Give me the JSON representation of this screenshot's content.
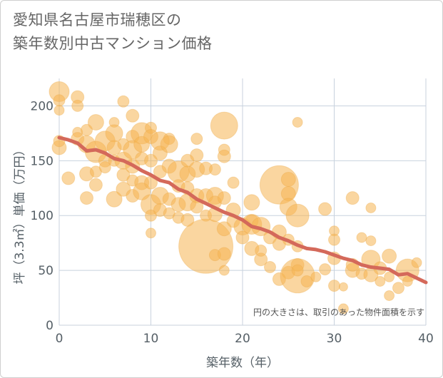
{
  "title_line1": "愛知県名古屋市瑞穂区の",
  "title_line2": "築年数別中古マンション価格",
  "chart_data": {
    "type": "scatter",
    "xlabel": "築年数（年）",
    "ylabel": "坪（3.3㎡）単価（万円）",
    "xlim": [
      0,
      40
    ],
    "ylim": [
      0,
      225
    ],
    "x_ticks": [
      "0",
      "10",
      "20",
      "30",
      "40"
    ],
    "y_ticks": [
      "0",
      "50",
      "100",
      "150",
      "200"
    ],
    "annotation": "円の大きさは、取引のあった物件面積を示す",
    "colors": {
      "bubble": "#f5b552",
      "trend": "#d4695a",
      "grid": "#c8d2de"
    },
    "trend": {
      "x": [
        0,
        1,
        2,
        3,
        4,
        5,
        6,
        7,
        8,
        9,
        10,
        11,
        12,
        13,
        14,
        15,
        16,
        17,
        18,
        19,
        20,
        21,
        22,
        23,
        24,
        25,
        26,
        27,
        28,
        29,
        30,
        31,
        32,
        33,
        34,
        35,
        36,
        37,
        38,
        39,
        40
      ],
      "y": [
        171,
        169,
        166,
        159,
        160,
        157,
        152,
        150,
        146,
        141,
        137,
        132,
        130,
        124,
        121,
        115,
        111,
        107,
        103,
        100,
        96,
        90,
        88,
        85,
        80,
        77,
        73,
        70,
        69,
        67,
        64,
        61,
        59,
        55,
        53,
        52,
        51,
        46,
        47,
        43,
        39
      ]
    },
    "points": [
      {
        "x": 0,
        "y": 213,
        "s": 14
      },
      {
        "x": 0,
        "y": 205,
        "s": 8
      },
      {
        "x": 0,
        "y": 196,
        "s": 7
      },
      {
        "x": 0,
        "y": 162,
        "s": 10
      },
      {
        "x": 0,
        "y": 168,
        "s": 8
      },
      {
        "x": 1,
        "y": 134,
        "s": 9
      },
      {
        "x": 2,
        "y": 208,
        "s": 9
      },
      {
        "x": 2,
        "y": 200,
        "s": 8
      },
      {
        "x": 2,
        "y": 176,
        "s": 7
      },
      {
        "x": 2,
        "y": 170,
        "s": 9
      },
      {
        "x": 3,
        "y": 178,
        "s": 8
      },
      {
        "x": 3,
        "y": 165,
        "s": 12
      },
      {
        "x": 3,
        "y": 138,
        "s": 10
      },
      {
        "x": 3,
        "y": 116,
        "s": 9
      },
      {
        "x": 4,
        "y": 185,
        "s": 11
      },
      {
        "x": 4,
        "y": 158,
        "s": 15
      },
      {
        "x": 4,
        "y": 140,
        "s": 8
      },
      {
        "x": 4,
        "y": 128,
        "s": 9
      },
      {
        "x": 5,
        "y": 168,
        "s": 14
      },
      {
        "x": 5,
        "y": 150,
        "s": 9
      },
      {
        "x": 5,
        "y": 144,
        "s": 8
      },
      {
        "x": 6,
        "y": 185,
        "s": 7
      },
      {
        "x": 6,
        "y": 175,
        "s": 12
      },
      {
        "x": 6,
        "y": 162,
        "s": 10
      },
      {
        "x": 6,
        "y": 150,
        "s": 8
      },
      {
        "x": 6,
        "y": 115,
        "s": 11
      },
      {
        "x": 7,
        "y": 204,
        "s": 8
      },
      {
        "x": 7,
        "y": 165,
        "s": 8
      },
      {
        "x": 7,
        "y": 150,
        "s": 12
      },
      {
        "x": 7,
        "y": 137,
        "s": 9
      },
      {
        "x": 7,
        "y": 124,
        "s": 10
      },
      {
        "x": 8,
        "y": 191,
        "s": 9
      },
      {
        "x": 8,
        "y": 172,
        "s": 9
      },
      {
        "x": 8,
        "y": 160,
        "s": 13
      },
      {
        "x": 8,
        "y": 145,
        "s": 10
      },
      {
        "x": 8,
        "y": 132,
        "s": 8
      },
      {
        "x": 8,
        "y": 118,
        "s": 9
      },
      {
        "x": 9,
        "y": 175,
        "s": 15
      },
      {
        "x": 9,
        "y": 165,
        "s": 11
      },
      {
        "x": 9,
        "y": 152,
        "s": 9
      },
      {
        "x": 9,
        "y": 130,
        "s": 10
      },
      {
        "x": 9,
        "y": 122,
        "s": 12
      },
      {
        "x": 10,
        "y": 180,
        "s": 8
      },
      {
        "x": 10,
        "y": 172,
        "s": 10
      },
      {
        "x": 10,
        "y": 150,
        "s": 9
      },
      {
        "x": 10,
        "y": 130,
        "s": 9
      },
      {
        "x": 10,
        "y": 110,
        "s": 14
      },
      {
        "x": 10,
        "y": 100,
        "s": 8
      },
      {
        "x": 10,
        "y": 84,
        "s": 7
      },
      {
        "x": 11,
        "y": 168,
        "s": 13
      },
      {
        "x": 11,
        "y": 157,
        "s": 10
      },
      {
        "x": 11,
        "y": 140,
        "s": 9
      },
      {
        "x": 11,
        "y": 118,
        "s": 12
      },
      {
        "x": 11,
        "y": 105,
        "s": 9
      },
      {
        "x": 12,
        "y": 170,
        "s": 8
      },
      {
        "x": 12,
        "y": 165,
        "s": 12
      },
      {
        "x": 12,
        "y": 145,
        "s": 10
      },
      {
        "x": 12,
        "y": 115,
        "s": 9
      },
      {
        "x": 12,
        "y": 102,
        "s": 8
      },
      {
        "x": 13,
        "y": 140,
        "s": 15
      },
      {
        "x": 13,
        "y": 127,
        "s": 9
      },
      {
        "x": 13,
        "y": 110,
        "s": 10
      },
      {
        "x": 13,
        "y": 98,
        "s": 8
      },
      {
        "x": 14,
        "y": 150,
        "s": 9
      },
      {
        "x": 14,
        "y": 138,
        "s": 11
      },
      {
        "x": 14,
        "y": 125,
        "s": 9
      },
      {
        "x": 14,
        "y": 112,
        "s": 12
      },
      {
        "x": 14,
        "y": 96,
        "s": 9
      },
      {
        "x": 15,
        "y": 170,
        "s": 8
      },
      {
        "x": 15,
        "y": 155,
        "s": 9
      },
      {
        "x": 15,
        "y": 142,
        "s": 11
      },
      {
        "x": 15,
        "y": 118,
        "s": 10
      },
      {
        "x": 15,
        "y": 108,
        "s": 9
      },
      {
        "x": 16,
        "y": 143,
        "s": 9
      },
      {
        "x": 16,
        "y": 118,
        "s": 10
      },
      {
        "x": 16,
        "y": 100,
        "s": 8
      },
      {
        "x": 16,
        "y": 72,
        "s": 38
      },
      {
        "x": 17,
        "y": 142,
        "s": 8
      },
      {
        "x": 17,
        "y": 118,
        "s": 12
      },
      {
        "x": 17,
        "y": 112,
        "s": 9
      },
      {
        "x": 17,
        "y": 101,
        "s": 10
      },
      {
        "x": 17,
        "y": 64,
        "s": 8
      },
      {
        "x": 18,
        "y": 182,
        "s": 19
      },
      {
        "x": 18,
        "y": 160,
        "s": 8
      },
      {
        "x": 18,
        "y": 154,
        "s": 9
      },
      {
        "x": 18,
        "y": 116,
        "s": 9
      },
      {
        "x": 18,
        "y": 88,
        "s": 10
      },
      {
        "x": 18,
        "y": 65,
        "s": 9
      },
      {
        "x": 18,
        "y": 50,
        "s": 7
      },
      {
        "x": 19,
        "y": 130,
        "s": 8
      },
      {
        "x": 19,
        "y": 105,
        "s": 10
      },
      {
        "x": 19,
        "y": 95,
        "s": 9
      },
      {
        "x": 20,
        "y": 90,
        "s": 12
      },
      {
        "x": 20,
        "y": 80,
        "s": 9
      },
      {
        "x": 21,
        "y": 112,
        "s": 11
      },
      {
        "x": 21,
        "y": 95,
        "s": 9
      },
      {
        "x": 21,
        "y": 70,
        "s": 10
      },
      {
        "x": 21,
        "y": 92,
        "s": 14
      },
      {
        "x": 22,
        "y": 90,
        "s": 13
      },
      {
        "x": 22,
        "y": 60,
        "s": 9
      },
      {
        "x": 22,
        "y": 68,
        "s": 8
      },
      {
        "x": 23,
        "y": 80,
        "s": 9
      },
      {
        "x": 23,
        "y": 53,
        "s": 8
      },
      {
        "x": 24,
        "y": 128,
        "s": 27
      },
      {
        "x": 24,
        "y": 85,
        "s": 10
      },
      {
        "x": 24,
        "y": 74,
        "s": 9
      },
      {
        "x": 24,
        "y": 42,
        "s": 9
      },
      {
        "x": 25,
        "y": 133,
        "s": 10
      },
      {
        "x": 25,
        "y": 120,
        "s": 10
      },
      {
        "x": 25,
        "y": 108,
        "s": 12
      },
      {
        "x": 25,
        "y": 78,
        "s": 8
      },
      {
        "x": 25,
        "y": 48,
        "s": 9
      },
      {
        "x": 26,
        "y": 185,
        "s": 7
      },
      {
        "x": 26,
        "y": 100,
        "s": 16
      },
      {
        "x": 26,
        "y": 72,
        "s": 8
      },
      {
        "x": 26,
        "y": 55,
        "s": 9
      },
      {
        "x": 26,
        "y": 45,
        "s": 24
      },
      {
        "x": 26,
        "y": 50,
        "s": 8
      },
      {
        "x": 27,
        "y": 40,
        "s": 8
      },
      {
        "x": 28,
        "y": 44,
        "s": 7
      },
      {
        "x": 29,
        "y": 106,
        "s": 9
      },
      {
        "x": 29,
        "y": 51,
        "s": 8
      },
      {
        "x": 30,
        "y": 86,
        "s": 7
      },
      {
        "x": 30,
        "y": 78,
        "s": 8
      },
      {
        "x": 30,
        "y": 61,
        "s": 9
      },
      {
        "x": 30,
        "y": 36,
        "s": 8
      },
      {
        "x": 31,
        "y": 35,
        "s": 6
      },
      {
        "x": 31,
        "y": 15,
        "s": 7
      },
      {
        "x": 32,
        "y": 116,
        "s": 9
      },
      {
        "x": 32,
        "y": 50,
        "s": 10
      },
      {
        "x": 32,
        "y": 55,
        "s": 9
      },
      {
        "x": 33,
        "y": 80,
        "s": 7
      },
      {
        "x": 33,
        "y": 47,
        "s": 8
      },
      {
        "x": 34,
        "y": 107,
        "s": 7
      },
      {
        "x": 34,
        "y": 77,
        "s": 7
      },
      {
        "x": 34,
        "y": 60,
        "s": 13
      },
      {
        "x": 34,
        "y": 46,
        "s": 10
      },
      {
        "x": 35,
        "y": 52,
        "s": 9
      },
      {
        "x": 35,
        "y": 40,
        "s": 7
      },
      {
        "x": 36,
        "y": 63,
        "s": 10
      },
      {
        "x": 36,
        "y": 44,
        "s": 7
      },
      {
        "x": 36,
        "y": 27,
        "s": 7
      },
      {
        "x": 37,
        "y": 34,
        "s": 8
      },
      {
        "x": 38,
        "y": 50,
        "s": 16
      },
      {
        "x": 38,
        "y": 40,
        "s": 7
      },
      {
        "x": 39,
        "y": 57,
        "s": 7
      }
    ]
  }
}
